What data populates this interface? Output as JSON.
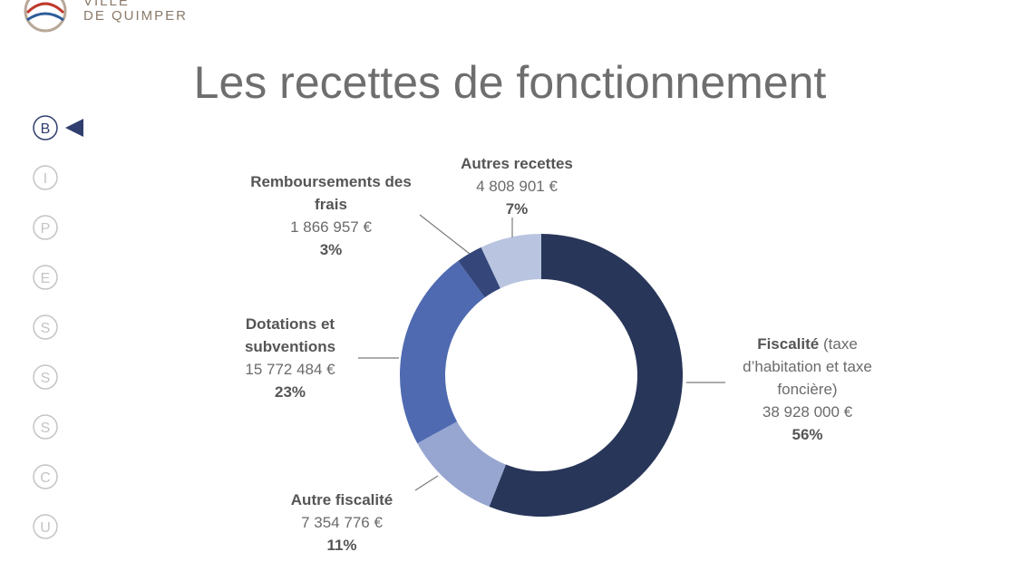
{
  "header": {
    "logo_lines": [
      "VILLE",
      "DE QUIMPER"
    ]
  },
  "nav": [
    "B",
    "I",
    "P",
    "E",
    "S",
    "S",
    "S",
    "C",
    "U"
  ],
  "chart_data": {
    "type": "pie",
    "donut": true,
    "title": "Les recettes de fonctionnement",
    "categories": [
      "Fiscalité",
      "Autre fiscalité",
      "Dotations et subventions",
      "Remboursements des frais",
      "Autres recettes"
    ],
    "category_note": "(taxe d’habitation et taxe foncière)",
    "amounts": [
      "38 928 000 €",
      "7 354 776 €",
      "15 772 484 €",
      "1 866 957 €",
      "4 808 901 €"
    ],
    "values": [
      56,
      11,
      23,
      3,
      7
    ],
    "value_labels": [
      "56%",
      "11%",
      "23%",
      "3%",
      "7%"
    ],
    "colors": [
      "#283659",
      "#97a6d1",
      "#4f6ab0",
      "#34467a",
      "#b9c4e0"
    ]
  }
}
